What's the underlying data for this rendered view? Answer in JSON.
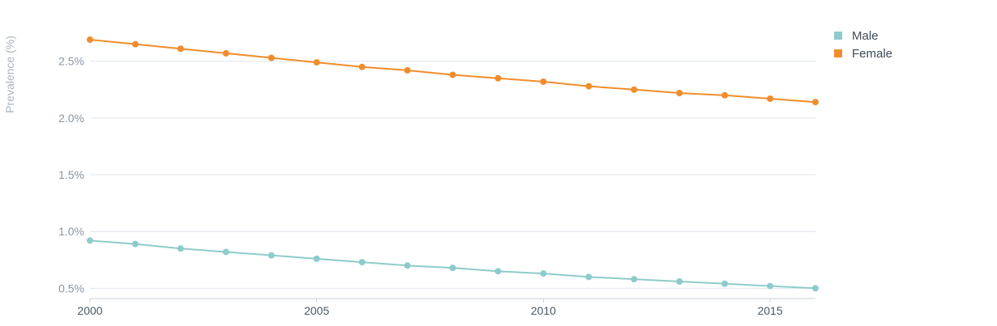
{
  "chart_data": {
    "type": "line",
    "title": "",
    "xlabel": "",
    "ylabel": "Prevalence (%)",
    "x": [
      2000,
      2001,
      2002,
      2003,
      2004,
      2005,
      2006,
      2007,
      2008,
      2009,
      2010,
      2011,
      2012,
      2013,
      2014,
      2015,
      2016
    ],
    "x_ticks": [
      "2000",
      "2005",
      "2010",
      "2015"
    ],
    "x_tick_values": [
      2000,
      2005,
      2010,
      2015
    ],
    "y_ticks": [
      "0.5%",
      "1.0%",
      "1.5%",
      "2.0%",
      "2.5%"
    ],
    "y_tick_values": [
      0.5,
      1.0,
      1.5,
      2.0,
      2.5
    ],
    "xlim": [
      2000,
      2016
    ],
    "ylim": [
      0.41,
      2.79
    ],
    "grid": "horizontal",
    "legend_position": "top-right",
    "series": [
      {
        "name": "Male",
        "color": "#8ecbcb",
        "values": [
          0.92,
          0.89,
          0.85,
          0.82,
          0.79,
          0.76,
          0.73,
          0.7,
          0.68,
          0.65,
          0.63,
          0.6,
          0.58,
          0.56,
          0.54,
          0.52,
          0.5
        ]
      },
      {
        "name": "Female",
        "color": "#f28c2b",
        "values": [
          2.69,
          2.65,
          2.61,
          2.57,
          2.53,
          2.49,
          2.45,
          2.42,
          2.38,
          2.35,
          2.32,
          2.28,
          2.25,
          2.22,
          2.2,
          2.17,
          2.14
        ]
      }
    ]
  }
}
